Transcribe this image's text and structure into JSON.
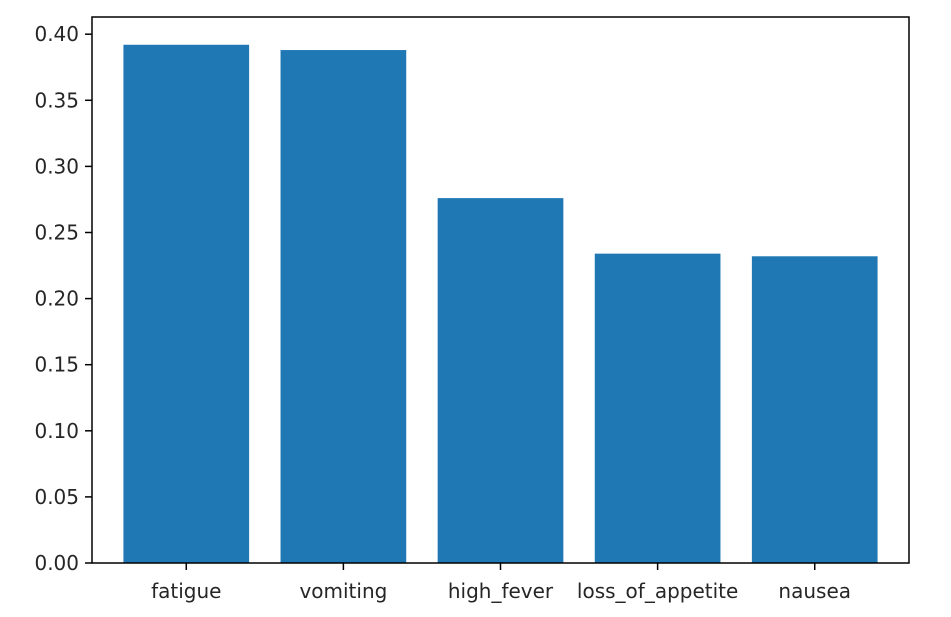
{
  "chart_data": {
    "type": "bar",
    "title": "",
    "xlabel": "",
    "ylabel": "",
    "categories": [
      "fatigue",
      "vomiting",
      "high_fever",
      "loss_of_appetite",
      "nausea"
    ],
    "values": [
      0.392,
      0.388,
      0.276,
      0.234,
      0.232
    ],
    "ylim": [
      0.0,
      0.413
    ],
    "yticks": [
      "0.00",
      "0.05",
      "0.10",
      "0.15",
      "0.20",
      "0.25",
      "0.30",
      "0.35",
      "0.40"
    ],
    "grid": false,
    "legend": "none",
    "bar_color": "#1f77b4"
  }
}
